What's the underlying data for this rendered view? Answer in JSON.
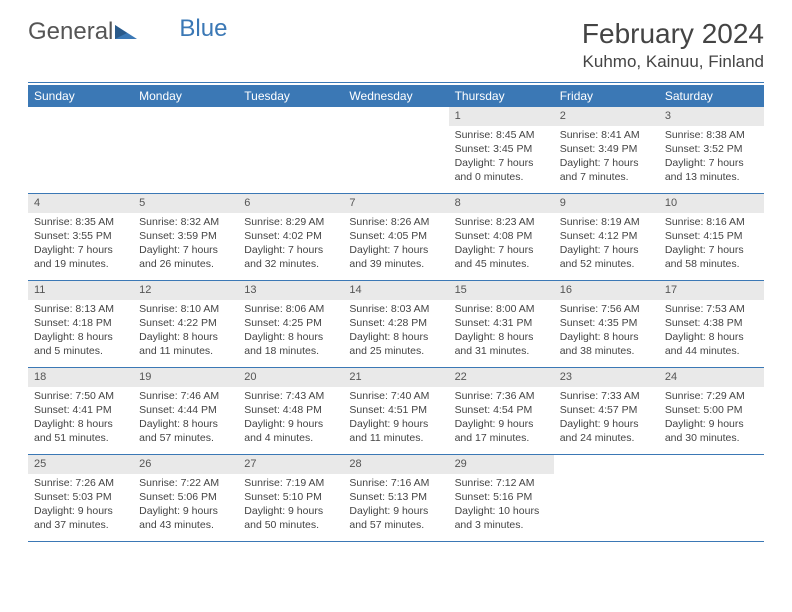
{
  "brand": {
    "part1": "General",
    "part2": "Blue",
    "accent": "#3b78b5"
  },
  "title": "February 2024",
  "location": "Kuhmo, Kainuu, Finland",
  "colors": {
    "header_bg": "#3b78b5",
    "daynum_bg": "#e9e9e9",
    "rule": "#3b78b5",
    "text": "#444444",
    "background": "#ffffff"
  },
  "fonts": {
    "base_family": "Arial",
    "title_size_pt": 21,
    "body_size_pt": 8
  },
  "day_names": [
    "Sunday",
    "Monday",
    "Tuesday",
    "Wednesday",
    "Thursday",
    "Friday",
    "Saturday"
  ],
  "weeks": [
    [
      null,
      null,
      null,
      null,
      {
        "d": "1",
        "sr": "8:45 AM",
        "ss": "3:45 PM",
        "dl": "7 hours and 0 minutes."
      },
      {
        "d": "2",
        "sr": "8:41 AM",
        "ss": "3:49 PM",
        "dl": "7 hours and 7 minutes."
      },
      {
        "d": "3",
        "sr": "8:38 AM",
        "ss": "3:52 PM",
        "dl": "7 hours and 13 minutes."
      }
    ],
    [
      {
        "d": "4",
        "sr": "8:35 AM",
        "ss": "3:55 PM",
        "dl": "7 hours and 19 minutes."
      },
      {
        "d": "5",
        "sr": "8:32 AM",
        "ss": "3:59 PM",
        "dl": "7 hours and 26 minutes."
      },
      {
        "d": "6",
        "sr": "8:29 AM",
        "ss": "4:02 PM",
        "dl": "7 hours and 32 minutes."
      },
      {
        "d": "7",
        "sr": "8:26 AM",
        "ss": "4:05 PM",
        "dl": "7 hours and 39 minutes."
      },
      {
        "d": "8",
        "sr": "8:23 AM",
        "ss": "4:08 PM",
        "dl": "7 hours and 45 minutes."
      },
      {
        "d": "9",
        "sr": "8:19 AM",
        "ss": "4:12 PM",
        "dl": "7 hours and 52 minutes."
      },
      {
        "d": "10",
        "sr": "8:16 AM",
        "ss": "4:15 PM",
        "dl": "7 hours and 58 minutes."
      }
    ],
    [
      {
        "d": "11",
        "sr": "8:13 AM",
        "ss": "4:18 PM",
        "dl": "8 hours and 5 minutes."
      },
      {
        "d": "12",
        "sr": "8:10 AM",
        "ss": "4:22 PM",
        "dl": "8 hours and 11 minutes."
      },
      {
        "d": "13",
        "sr": "8:06 AM",
        "ss": "4:25 PM",
        "dl": "8 hours and 18 minutes."
      },
      {
        "d": "14",
        "sr": "8:03 AM",
        "ss": "4:28 PM",
        "dl": "8 hours and 25 minutes."
      },
      {
        "d": "15",
        "sr": "8:00 AM",
        "ss": "4:31 PM",
        "dl": "8 hours and 31 minutes."
      },
      {
        "d": "16",
        "sr": "7:56 AM",
        "ss": "4:35 PM",
        "dl": "8 hours and 38 minutes."
      },
      {
        "d": "17",
        "sr": "7:53 AM",
        "ss": "4:38 PM",
        "dl": "8 hours and 44 minutes."
      }
    ],
    [
      {
        "d": "18",
        "sr": "7:50 AM",
        "ss": "4:41 PM",
        "dl": "8 hours and 51 minutes."
      },
      {
        "d": "19",
        "sr": "7:46 AM",
        "ss": "4:44 PM",
        "dl": "8 hours and 57 minutes."
      },
      {
        "d": "20",
        "sr": "7:43 AM",
        "ss": "4:48 PM",
        "dl": "9 hours and 4 minutes."
      },
      {
        "d": "21",
        "sr": "7:40 AM",
        "ss": "4:51 PM",
        "dl": "9 hours and 11 minutes."
      },
      {
        "d": "22",
        "sr": "7:36 AM",
        "ss": "4:54 PM",
        "dl": "9 hours and 17 minutes."
      },
      {
        "d": "23",
        "sr": "7:33 AM",
        "ss": "4:57 PM",
        "dl": "9 hours and 24 minutes."
      },
      {
        "d": "24",
        "sr": "7:29 AM",
        "ss": "5:00 PM",
        "dl": "9 hours and 30 minutes."
      }
    ],
    [
      {
        "d": "25",
        "sr": "7:26 AM",
        "ss": "5:03 PM",
        "dl": "9 hours and 37 minutes."
      },
      {
        "d": "26",
        "sr": "7:22 AM",
        "ss": "5:06 PM",
        "dl": "9 hours and 43 minutes."
      },
      {
        "d": "27",
        "sr": "7:19 AM",
        "ss": "5:10 PM",
        "dl": "9 hours and 50 minutes."
      },
      {
        "d": "28",
        "sr": "7:16 AM",
        "ss": "5:13 PM",
        "dl": "9 hours and 57 minutes."
      },
      {
        "d": "29",
        "sr": "7:12 AM",
        "ss": "5:16 PM",
        "dl": "10 hours and 3 minutes."
      },
      null,
      null
    ]
  ],
  "labels": {
    "sunrise": "Sunrise:",
    "sunset": "Sunset:",
    "daylight": "Daylight:"
  }
}
